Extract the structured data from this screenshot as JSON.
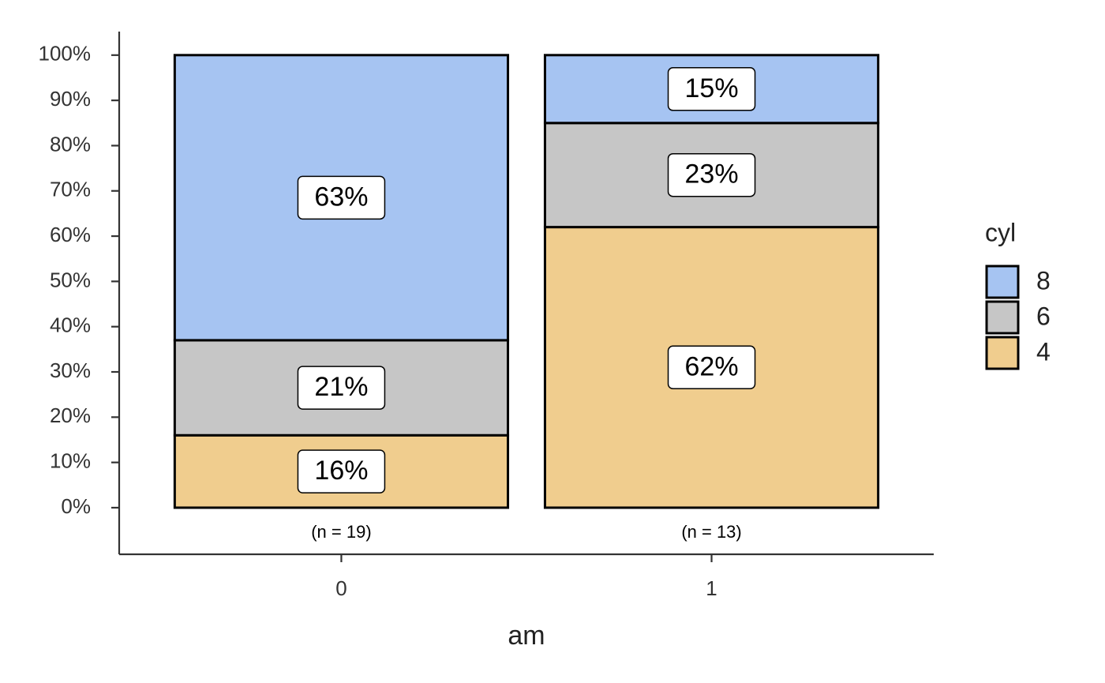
{
  "chart_data": {
    "type": "stacked_bar",
    "x_label": "am",
    "legend_title": "cyl",
    "categories": [
      "0",
      "1"
    ],
    "annotations": [
      "(n = 19)",
      "(n = 13)"
    ],
    "series": [
      {
        "name": "4",
        "color": "#f0cd8e",
        "values": [
          16,
          62
        ],
        "value_labels": [
          "16%",
          "62%"
        ]
      },
      {
        "name": "6",
        "color": "#c6c6c6",
        "values": [
          21,
          23
        ],
        "value_labels": [
          "21%",
          "23%"
        ]
      },
      {
        "name": "8",
        "color": "#a6c4f2",
        "values": [
          63,
          15
        ],
        "value_labels": [
          "63%",
          "15%"
        ]
      }
    ],
    "ylim": [
      -10.3,
      105.2
    ],
    "yticks": [
      {
        "value": 0,
        "label": "0%"
      },
      {
        "value": 10,
        "label": "10%"
      },
      {
        "value": 20,
        "label": "20%"
      },
      {
        "value": 30,
        "label": "30%"
      },
      {
        "value": 40,
        "label": "40%"
      },
      {
        "value": 50,
        "label": "50%"
      },
      {
        "value": 60,
        "label": "60%"
      },
      {
        "value": 70,
        "label": "70%"
      },
      {
        "value": 80,
        "label": "80%"
      },
      {
        "value": 90,
        "label": "90%"
      },
      {
        "value": 100,
        "label": "100%"
      }
    ],
    "grid": false,
    "legend_position": "right"
  }
}
